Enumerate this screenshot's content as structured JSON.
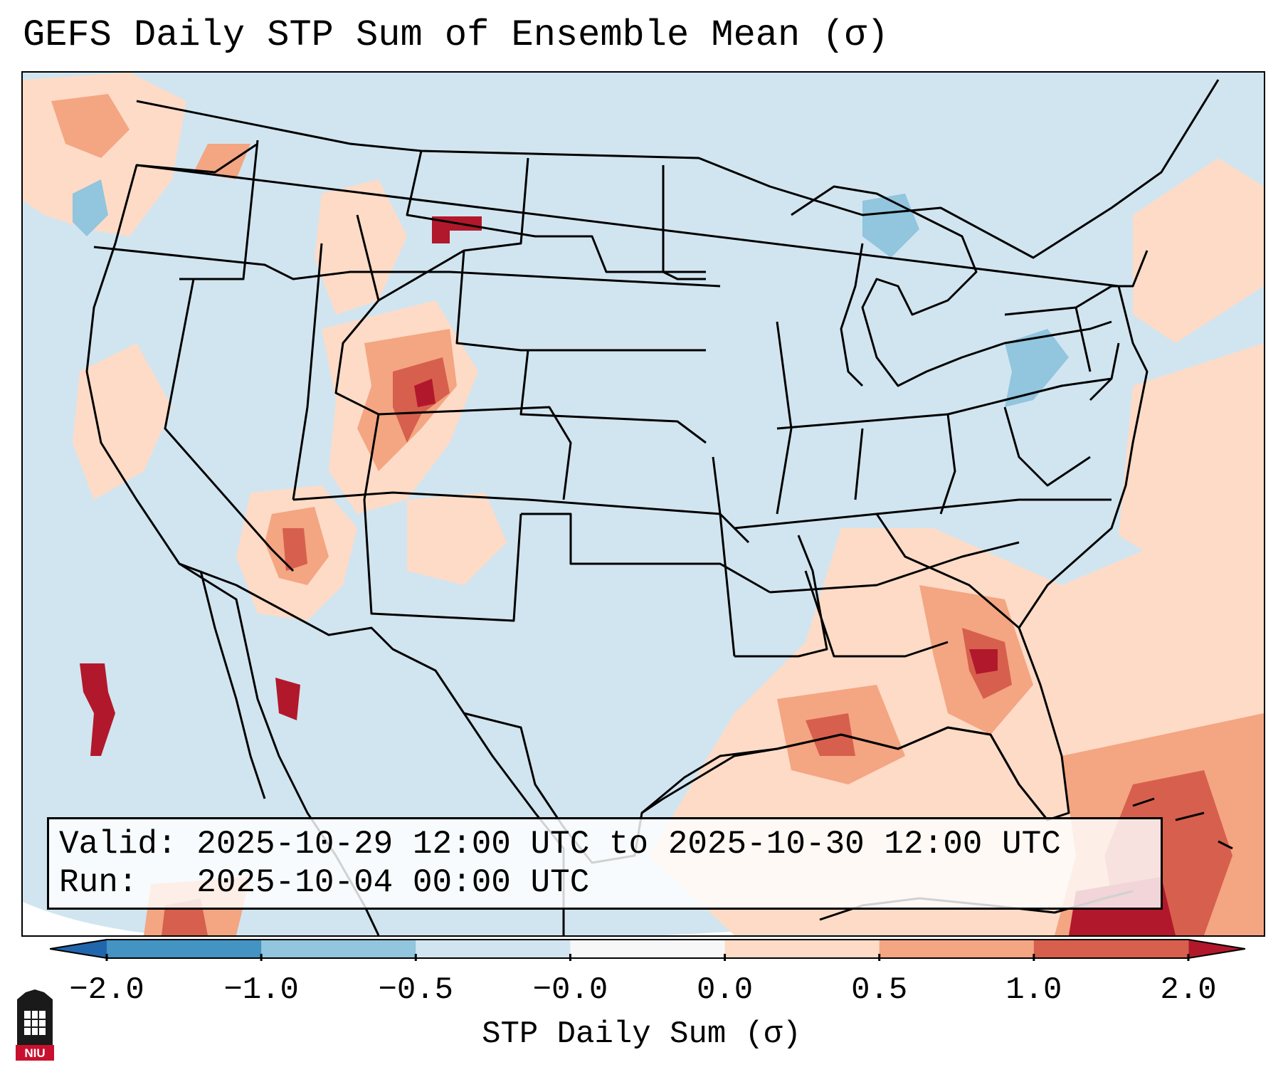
{
  "title": "GEFS Daily STP Sum of Ensemble Mean (σ)",
  "info": {
    "valid_line": "Valid: 2025-10-29 12:00 UTC to 2025-10-30 12:00 UTC",
    "run_line": "Run:   2025-10-04 00:00 UTC"
  },
  "colorbar": {
    "label": "STP Daily Sum (σ)",
    "ticks": [
      "−2.0",
      "−1.0",
      "−0.5",
      "−0.0",
      "0.0",
      "0.5",
      "1.0",
      "2.0"
    ],
    "colors": [
      "#4393c3",
      "#92c5de",
      "#d1e5f0",
      "#f7f7f7",
      "#fddbc7",
      "#f4a582",
      "#d6604d"
    ],
    "under_color": "#2166ac",
    "over_color": "#b2182b"
  },
  "map": {
    "background_color": "#d1e5f0",
    "region": "Contiguous United States",
    "anomaly_areas": [
      {
        "region": "Pacific Northwest coast",
        "sigma_level": "0.0 to 0.5"
      },
      {
        "region": "Northeastern Wyoming",
        "sigma_level": "above 2.0"
      },
      {
        "region": "Western Colorado / Eastern Utah",
        "sigma_level": "1.0 to 2.0"
      },
      {
        "region": "Arizona",
        "sigma_level": "1.0 to 2.0"
      },
      {
        "region": "Georgia",
        "sigma_level": "1.0 to 2.0"
      },
      {
        "region": "Gulf of Mexico",
        "sigma_level": "0.5 to 1.0"
      },
      {
        "region": "Lake Michigan",
        "sigma_level": "-0.5 to -1.0"
      },
      {
        "region": "Pennsylvania",
        "sigma_level": "-0.5 to -1.0"
      },
      {
        "region": "Eastern Pacific off Baja",
        "sigma_level": "above 2.0"
      },
      {
        "region": "Bahamas / Caribbean",
        "sigma_level": "1.0 to 2.0"
      }
    ]
  },
  "logo": {
    "text": "NIU"
  }
}
